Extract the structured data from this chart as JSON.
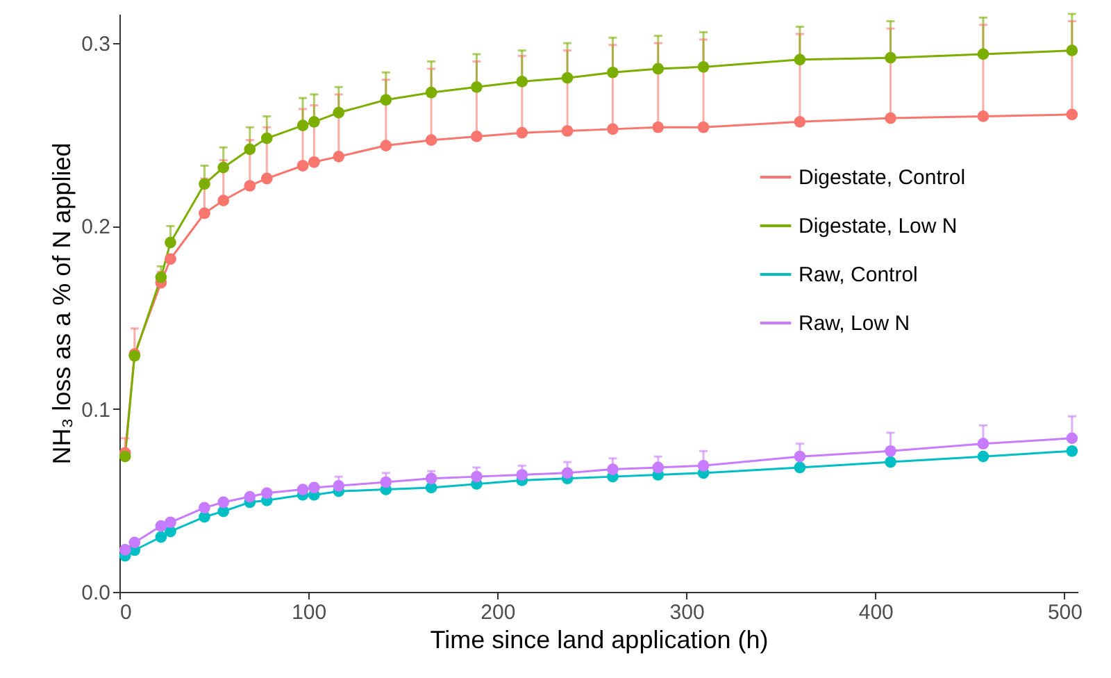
{
  "chart_data": {
    "type": "line",
    "xlabel": "Time since land application (h)",
    "ylabel": "NH₃ loss as a % of N applied",
    "x": [
      3,
      8,
      22,
      27,
      45,
      55,
      69,
      78,
      97,
      103,
      116,
      141,
      165,
      189,
      213,
      237,
      261,
      285,
      309,
      360,
      408,
      457,
      504
    ],
    "series": [
      {
        "name": "Digestate, Control",
        "color": "#f8766d",
        "values": [
          0.076,
          0.13,
          0.169,
          0.182,
          0.207,
          0.214,
          0.222,
          0.226,
          0.233,
          0.235,
          0.238,
          0.244,
          0.247,
          0.249,
          0.251,
          0.252,
          0.253,
          0.254,
          0.254,
          0.257,
          0.259,
          0.26,
          0.261
        ],
        "errors": [
          [
            0.076,
            0.084
          ],
          [
            0.13,
            0.144
          ],
          [
            0.169,
            0.175
          ],
          null,
          [
            0.207,
            0.226
          ],
          [
            0.214,
            0.236
          ],
          [
            0.222,
            0.247
          ],
          [
            0.226,
            0.254
          ],
          [
            0.233,
            0.264
          ],
          [
            0.235,
            0.266
          ],
          [
            0.238,
            0.272
          ],
          [
            0.244,
            0.28
          ],
          [
            0.247,
            0.286
          ],
          [
            0.249,
            0.29
          ],
          [
            0.251,
            0.293
          ],
          [
            0.252,
            0.296
          ],
          [
            0.253,
            0.299
          ],
          [
            0.254,
            0.3
          ],
          [
            0.254,
            0.302
          ],
          [
            0.257,
            0.305
          ],
          [
            0.259,
            0.308
          ],
          [
            0.26,
            0.31
          ],
          [
            0.261,
            0.312
          ]
        ]
      },
      {
        "name": "Digestate, Low N",
        "color": "#7cae00",
        "values": [
          0.074,
          0.129,
          0.172,
          0.191,
          0.223,
          0.232,
          0.242,
          0.248,
          0.255,
          0.257,
          0.262,
          0.269,
          0.273,
          0.276,
          0.279,
          0.281,
          0.284,
          0.286,
          0.287,
          0.291,
          0.292,
          0.294,
          0.296
        ],
        "errors": [
          null,
          null,
          [
            0.172,
            0.178
          ],
          [
            0.191,
            0.2
          ],
          [
            0.223,
            0.233
          ],
          [
            0.232,
            0.243
          ],
          [
            0.242,
            0.254
          ],
          [
            0.248,
            0.26
          ],
          [
            0.255,
            0.27
          ],
          [
            0.257,
            0.272
          ],
          [
            0.262,
            0.276
          ],
          [
            0.269,
            0.284
          ],
          [
            0.273,
            0.29
          ],
          [
            0.276,
            0.294
          ],
          [
            0.279,
            0.296
          ],
          [
            0.281,
            0.3
          ],
          [
            0.284,
            0.303
          ],
          [
            0.286,
            0.304
          ],
          [
            0.287,
            0.306
          ],
          [
            0.291,
            0.309
          ],
          [
            0.292,
            0.312
          ],
          [
            0.294,
            0.314
          ],
          [
            0.296,
            0.316
          ]
        ]
      },
      {
        "name": "Raw, Control",
        "color": "#00bfc4",
        "values": [
          0.0197,
          0.0228,
          0.03,
          0.033,
          0.041,
          0.044,
          0.049,
          0.05,
          0.053,
          0.053,
          0.055,
          0.056,
          0.057,
          0.059,
          0.061,
          0.062,
          0.063,
          0.064,
          0.065,
          0.068,
          0.071,
          0.074,
          0.077
        ]
      },
      {
        "name": "Raw, Low N",
        "color": "#c77cff",
        "values": [
          0.023,
          0.027,
          0.036,
          0.038,
          0.046,
          0.049,
          0.052,
          0.054,
          0.056,
          0.057,
          0.058,
          0.06,
          0.062,
          0.063,
          0.064,
          0.065,
          0.067,
          0.068,
          0.069,
          0.074,
          0.077,
          0.081,
          0.084
        ],
        "errors": [
          null,
          null,
          null,
          null,
          null,
          null,
          null,
          null,
          null,
          null,
          [
            0.058,
            0.063
          ],
          [
            0.06,
            0.065
          ],
          [
            0.062,
            0.066
          ],
          [
            0.063,
            0.068
          ],
          [
            0.064,
            0.069
          ],
          [
            0.065,
            0.071
          ],
          [
            0.067,
            0.073
          ],
          [
            0.068,
            0.074
          ],
          [
            0.069,
            0.077
          ],
          [
            0.074,
            0.081
          ],
          [
            0.077,
            0.087
          ],
          [
            0.081,
            0.091
          ],
          [
            0.084,
            0.096
          ]
        ]
      }
    ],
    "xlim": [
      0,
      507
    ],
    "xticks": [
      0,
      100,
      200,
      300,
      400,
      500
    ],
    "ylim": [
      0,
      0.316
    ],
    "yticks": [
      {
        "value": 0,
        "label": "0.0"
      },
      0.1,
      0.2,
      0.3
    ],
    "legend": "right",
    "grid": false,
    "marker": "circle",
    "line_style": "solid"
  }
}
